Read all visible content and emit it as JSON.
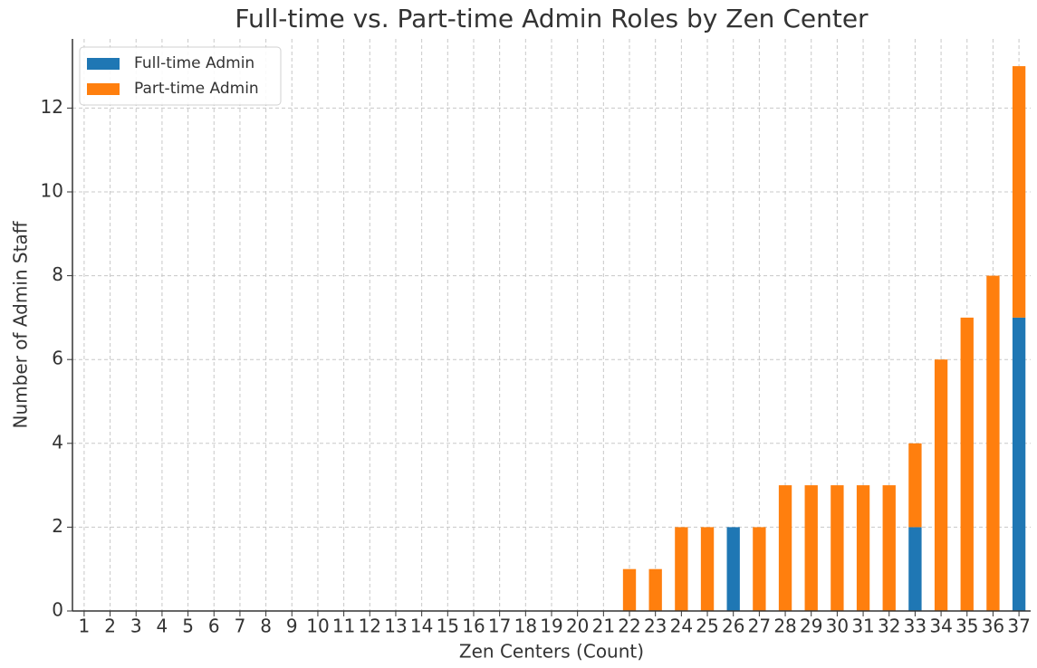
{
  "chart_data": {
    "type": "stacked-bar",
    "title": "Full-time vs. Part-time Admin Roles by Zen Center",
    "xlabel": "Zen Centers (Count)",
    "ylabel": "Number of Admin Staff",
    "x": [
      1,
      2,
      3,
      4,
      5,
      6,
      7,
      8,
      9,
      10,
      11,
      12,
      13,
      14,
      15,
      16,
      17,
      18,
      19,
      20,
      21,
      22,
      23,
      24,
      25,
      26,
      27,
      28,
      29,
      30,
      31,
      32,
      33,
      34,
      35,
      36,
      37
    ],
    "xlim": [
      0.55,
      37.45
    ],
    "xticks": [
      1,
      2,
      3,
      4,
      5,
      6,
      7,
      8,
      9,
      10,
      11,
      12,
      13,
      14,
      15,
      16,
      17,
      18,
      19,
      20,
      21,
      22,
      23,
      24,
      25,
      26,
      27,
      28,
      29,
      30,
      31,
      32,
      33,
      34,
      35,
      36,
      37
    ],
    "ylim": [
      0,
      13.65
    ],
    "yticks": [
      0,
      2,
      4,
      6,
      8,
      10,
      12
    ],
    "grid": true,
    "legend": "upper left",
    "series": [
      {
        "name": "Full-time Admin",
        "color": "#1f77b4",
        "values": [
          0,
          0,
          0,
          0,
          0,
          0,
          0,
          0,
          0,
          0,
          0,
          0,
          0,
          0,
          0,
          0,
          0,
          0,
          0,
          0,
          0,
          0,
          0,
          0,
          0,
          2,
          0,
          0,
          0,
          0,
          0,
          0,
          2,
          0,
          0,
          0,
          7
        ]
      },
      {
        "name": "Part-time Admin",
        "color": "#ff7f0e",
        "values": [
          0,
          0,
          0,
          0,
          0,
          0,
          0,
          0,
          0,
          0,
          0,
          0,
          0,
          0,
          0,
          0,
          0,
          0,
          0,
          0,
          0,
          1,
          1,
          2,
          2,
          0,
          2,
          3,
          3,
          3,
          3,
          3,
          2,
          6,
          7,
          8,
          6
        ]
      }
    ]
  }
}
